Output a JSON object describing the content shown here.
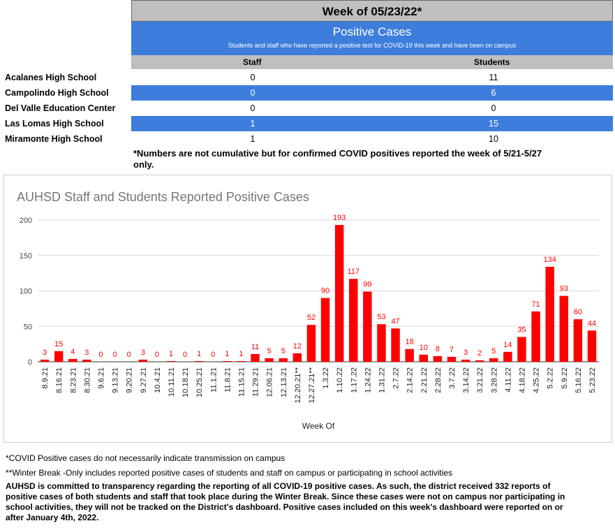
{
  "header": {
    "week_title": "Week of 05/23/22*",
    "section_title": "Positive Cases",
    "section_subtitle": "Students and staff who have reported a positive test for COVID-19 this week and have been on campus",
    "col_staff": "Staff",
    "col_students": "Students"
  },
  "schools": [
    {
      "name": "Acalanes High School",
      "staff": "0",
      "students": "11"
    },
    {
      "name": "Campolindo High School",
      "staff": "0",
      "students": "6"
    },
    {
      "name": "Del Valle Education Center",
      "staff": "0",
      "students": "0"
    },
    {
      "name": "Las Lomas High School",
      "staff": "1",
      "students": "15"
    },
    {
      "name": "Miramonte High School",
      "staff": "1",
      "students": "10"
    }
  ],
  "note_top": "*Numbers are not cumulative but for confirmed COVID positives reported the week of 5/21-5/27 only.",
  "chart_data": {
    "type": "bar",
    "title": "AUHSD Staff and Students Reported Positive Cases",
    "xlabel": "Week Of",
    "ylabel": "",
    "ylim": [
      0,
      200
    ],
    "yticks": [
      0,
      50,
      100,
      150,
      200
    ],
    "grid": true,
    "bar_color": "#ff0000",
    "categories": [
      "8.9.21",
      "8.16.21",
      "8.23.21",
      "8.30.21",
      "9.6.21",
      "9.13.21",
      "9.20.21",
      "9.27.21",
      "10.4.21",
      "10.11.21",
      "10.18.21",
      "10.25.21",
      "11.1.21",
      "11.8.21",
      "11.15.21",
      "11.29.21",
      "12.06.21",
      "12.13.21",
      "12.20.21**",
      "12.27.21**",
      "1.3.22",
      "1.10.22",
      "1.17.22",
      "1.24.22",
      "1.31.22",
      "2.7.22",
      "2.14.22",
      "2.21.22",
      "2.28.22",
      "3.7.22",
      "3.14.22",
      "3.21.22",
      "3.28.22",
      "4.11.22",
      "4.18.22",
      "4.25.22",
      "5.2.22",
      "5.9.22",
      "5.16.22",
      "5.23.22"
    ],
    "values": [
      3,
      15,
      4,
      3,
      0,
      0,
      0,
      3,
      0,
      1,
      0,
      1,
      0,
      1,
      1,
      11,
      5,
      5,
      12,
      52,
      90,
      193,
      117,
      99,
      53,
      47,
      18,
      10,
      8,
      7,
      3,
      2,
      5,
      14,
      35,
      71,
      134,
      93,
      60,
      44
    ]
  },
  "footnotes": {
    "f1": "*COVID Positive cases do not necessarily indicate transmission on campus",
    "f2": "**Winter Break -Only includes reported positive cases of students and staff on campus or participating in school activities",
    "f3": "AUHSD is committed to transparency regarding the reporting of all COVID-19 positive cases. As such, the district received 332 reports of positive cases of both students and staff that took place during the Winter Break. Since these cases were not on campus nor participating in school activities, they will not be tracked on the District's dashboard. Positive cases included on this week's dashboard were reported on  or after January 4th, 2022."
  }
}
